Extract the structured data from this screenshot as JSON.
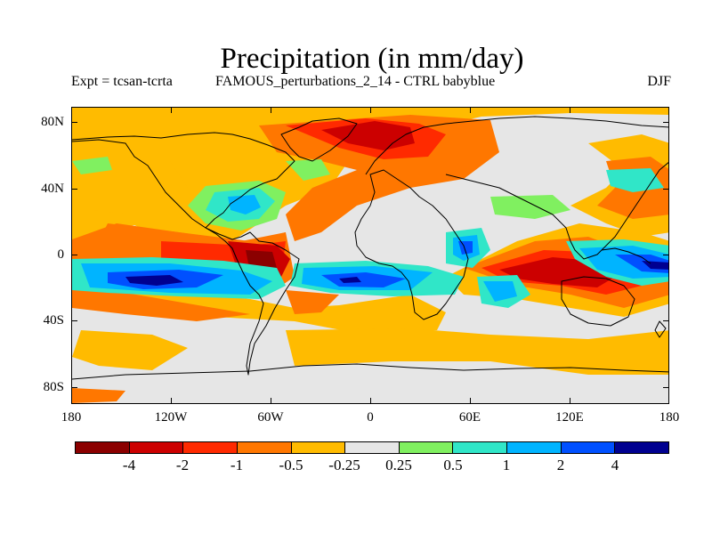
{
  "header": {
    "title": "Precipitation (in mm/day)",
    "left_label": "Expt = tcsan-tcrta",
    "center_label": "FAMOUS_perturbations_2_14 - CTRL babyblue",
    "right_label": "DJF"
  },
  "map": {
    "projection": "cylindrical equidistant",
    "lon_range": [
      -180,
      180
    ],
    "lat_range": [
      -90,
      90
    ],
    "y_ticks": [
      "80N",
      "40N",
      "0",
      "40S",
      "80S"
    ],
    "x_ticks": [
      "180",
      "120W",
      "60W",
      "0",
      "60E",
      "120E",
      "180"
    ]
  },
  "colorbar": {
    "colors": [
      "#8b0000",
      "#cc0000",
      "#ff2a00",
      "#ff7700",
      "#ffbb00",
      "#e6e6e6",
      "#80f060",
      "#30e6c8",
      "#00b4ff",
      "#0050ff",
      "#000090"
    ],
    "labels": [
      "-4",
      "-2",
      "-1",
      "-0.5",
      "-0.25",
      "0.25",
      "0.5",
      "1",
      "2",
      "4"
    ]
  }
}
